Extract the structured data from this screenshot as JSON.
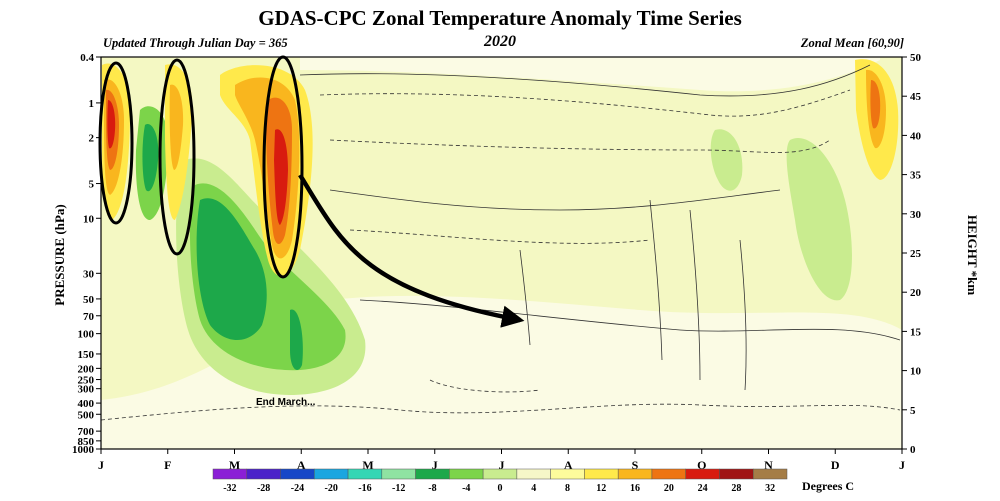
{
  "chart_data": {
    "type": "heatmap",
    "title": "GDAS-CPC Zonal Temperature Anomaly Time Series",
    "subtitle_left": "Updated Through Julian Day = 365",
    "subtitle_center": "2020",
    "subtitle_right": "Zonal Mean [60,90]",
    "ylabel_left": "PRESSURE (hPa)",
    "ylabel_right": "HEIGHT *km",
    "colorbar_label": "Degrees C",
    "x_ticks": [
      "J",
      "F",
      "M",
      "A",
      "M",
      "J",
      "J",
      "A",
      "S",
      "O",
      "N",
      "D",
      "J"
    ],
    "pressure_ticks": [
      "0.4",
      "1",
      "2",
      "5",
      "10",
      "30",
      "50",
      "70",
      "100",
      "150",
      "200",
      "250",
      "300",
      "400",
      "500",
      "700",
      "850",
      "1000"
    ],
    "height_ticks": [
      50,
      45,
      40,
      35,
      30,
      25,
      20,
      15,
      10,
      5,
      0
    ],
    "color_levels": [
      -32,
      -28,
      -24,
      -20,
      -16,
      -12,
      -8,
      -4,
      0,
      4,
      8,
      12,
      16,
      20,
      24,
      28,
      32
    ],
    "color_palette": [
      "#8b1fd6",
      "#4b22c9",
      "#1747c7",
      "#1aa6e0",
      "#35d6b4",
      "#8fe3a2",
      "#1da84a",
      "#7cd44a",
      "#c9ec8f",
      "#f6f7c8",
      "#fdfb9c",
      "#ffe94b",
      "#f9b61e",
      "#ee7412",
      "#d81b0f",
      "#a01414",
      "#a57d46"
    ],
    "background_color": "#f4f8c3",
    "anomaly_regions": [
      {
        "label": "Jan warm",
        "day": 11,
        "pressure_hPa": 2,
        "value": 20
      },
      {
        "label": "Feb warm",
        "day": 42,
        "pressure_hPa": 2,
        "value": 12
      },
      {
        "label": "Feb cold",
        "day": 35,
        "pressure_hPa": 4,
        "value": -12
      },
      {
        "label": "Mar cold",
        "day": 68,
        "pressure_hPa": 30,
        "value": -10
      },
      {
        "label": "Mar-Apr warm",
        "day": 95,
        "pressure_hPa": 5,
        "value": 20
      },
      {
        "label": "Nov cold",
        "day": 330,
        "pressure_hPa": 30,
        "value": -6
      },
      {
        "label": "Dec warm",
        "day": 352,
        "pressure_hPa": 1,
        "value": 12
      }
    ],
    "annotations": [
      "End March..."
    ]
  }
}
